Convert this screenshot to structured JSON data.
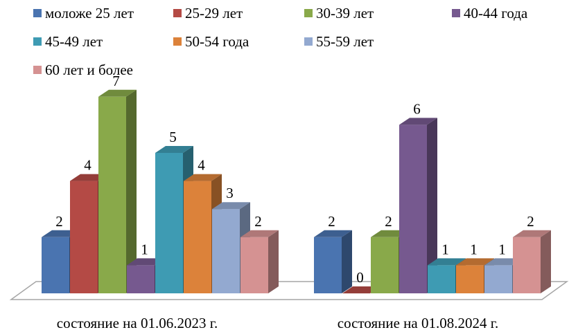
{
  "chart_data": {
    "type": "bar",
    "categories": [
      "состояние на 01.06.2023 г.",
      "состояние на 01.08.2024 г."
    ],
    "series": [
      {
        "name": "моложе 25 лет",
        "color": "#4a74b0",
        "values": [
          2,
          2
        ]
      },
      {
        "name": "25-29 лет",
        "color": "#b44a45",
        "values": [
          4,
          0
        ]
      },
      {
        "name": "30-39 лет",
        "color": "#89a94a",
        "values": [
          7,
          2
        ]
      },
      {
        "name": "40-44 года",
        "color": "#76598f",
        "values": [
          1,
          6
        ]
      },
      {
        "name": "45-49 лет",
        "color": "#3e9bb3",
        "values": [
          5,
          1
        ]
      },
      {
        "name": "50-54 года",
        "color": "#dc823a",
        "values": [
          4,
          1
        ]
      },
      {
        "name": "55-59 лет",
        "color": "#93a9d0",
        "values": [
          3,
          1
        ]
      },
      {
        "name": "60 лет и более",
        "color": "#d59292",
        "values": [
          2,
          2
        ]
      }
    ],
    "ylim": [
      0,
      7
    ],
    "data_labels": true,
    "legend_position": "top",
    "three_d": true
  }
}
